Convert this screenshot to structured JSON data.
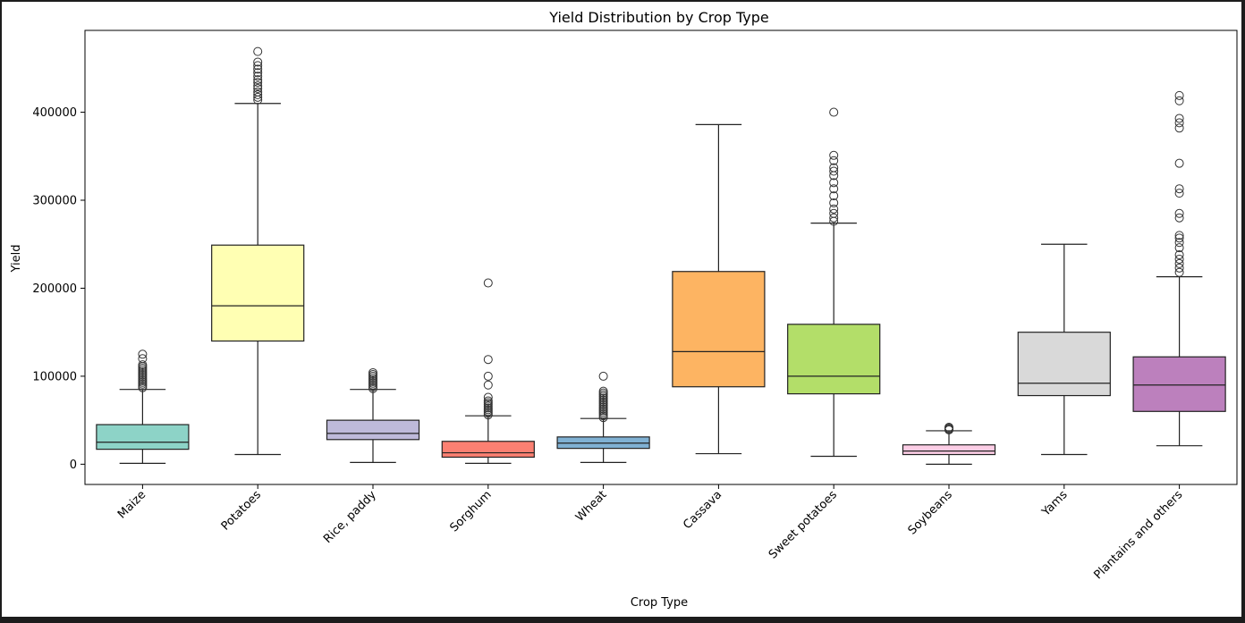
{
  "chart_data": {
    "type": "box",
    "title": "Yield Distribution by Crop Type",
    "xlabel": "Crop Type",
    "ylabel": "Yield",
    "ylim": [
      -23000,
      493000
    ],
    "yticks": [
      0,
      100000,
      200000,
      300000,
      400000
    ],
    "ytick_labels": [
      "0",
      "100000",
      "200000",
      "300000",
      "400000"
    ],
    "grid": false,
    "categories": [
      "Maize",
      "Potatoes",
      "Rice, paddy",
      "Sorghum",
      "Wheat",
      "Cassava",
      "Sweet potatoes",
      "Soybeans",
      "Yams",
      "Plantains and others"
    ],
    "boxes": [
      {
        "category": "Maize",
        "color": "#8dd3c7",
        "whisker_low": 1000,
        "q1": 17000,
        "median": 25000,
        "q3": 45000,
        "whisker_high": 85000,
        "outliers": [
          87000,
          89000,
          91000,
          93000,
          95000,
          97000,
          99000,
          101000,
          103000,
          105000,
          107000,
          109000,
          111000,
          113000,
          120000,
          125000
        ]
      },
      {
        "category": "Potatoes",
        "color": "#ffffb3",
        "whisker_low": 11000,
        "q1": 140000,
        "median": 180000,
        "q3": 249000,
        "whisker_high": 410000,
        "outliers": [
          414000,
          417000,
          420000,
          423000,
          427000,
          430000,
          434000,
          437000,
          441000,
          445000,
          449000,
          453000,
          457000,
          469000
        ]
      },
      {
        "category": "Rice, paddy",
        "color": "#bebada",
        "whisker_low": 2000,
        "q1": 28000,
        "median": 35000,
        "q3": 50000,
        "whisker_high": 85000,
        "outliers": [
          86000,
          88000,
          90000,
          92000,
          94000,
          96000,
          98000,
          100000,
          102000,
          104000
        ]
      },
      {
        "category": "Sorghum",
        "color": "#fb8072",
        "whisker_low": 1000,
        "q1": 8000,
        "median": 13000,
        "q3": 26000,
        "whisker_high": 55000,
        "outliers": [
          56000,
          58000,
          60000,
          62000,
          64000,
          66000,
          68000,
          70000,
          72000,
          76000,
          90000,
          100000,
          119000,
          206000
        ]
      },
      {
        "category": "Wheat",
        "color": "#80b1d3",
        "whisker_low": 2000,
        "q1": 18000,
        "median": 24000,
        "q3": 31000,
        "whisker_high": 52000,
        "outliers": [
          53000,
          55000,
          57000,
          59000,
          61000,
          63000,
          65000,
          67000,
          69000,
          71000,
          73000,
          75000,
          77000,
          79000,
          81000,
          83000,
          100000
        ]
      },
      {
        "category": "Cassava",
        "color": "#fdb462",
        "whisker_low": 12000,
        "q1": 88000,
        "median": 128000,
        "q3": 219000,
        "whisker_high": 386000,
        "outliers": []
      },
      {
        "category": "Sweet potatoes",
        "color": "#b3de69",
        "whisker_low": 9000,
        "q1": 80000,
        "median": 100000,
        "q3": 159000,
        "whisker_high": 274000,
        "outliers": [
          276000,
          280000,
          285000,
          290000,
          297000,
          305000,
          313000,
          320000,
          328000,
          333000,
          337000,
          345000,
          351000,
          400000
        ]
      },
      {
        "category": "Soybeans",
        "color": "#fccde5",
        "whisker_low": 0,
        "q1": 11000,
        "median": 15000,
        "q3": 22000,
        "whisker_high": 38000,
        "outliers": [
          39000,
          40000,
          41000,
          42000
        ]
      },
      {
        "category": "Yams",
        "color": "#d9d9d9",
        "whisker_low": 11000,
        "q1": 78000,
        "median": 92000,
        "q3": 150000,
        "whisker_high": 250000,
        "outliers": []
      },
      {
        "category": "Plantains and others",
        "color": "#bc80bd",
        "whisker_low": 21000,
        "q1": 60000,
        "median": 90000,
        "q3": 122000,
        "whisker_high": 213000,
        "outliers": [
          218000,
          223000,
          228000,
          233000,
          238000,
          246000,
          252000,
          257000,
          260000,
          280000,
          285000,
          308000,
          313000,
          342000,
          382000,
          388000,
          393000,
          413000,
          419000
        ]
      }
    ]
  }
}
